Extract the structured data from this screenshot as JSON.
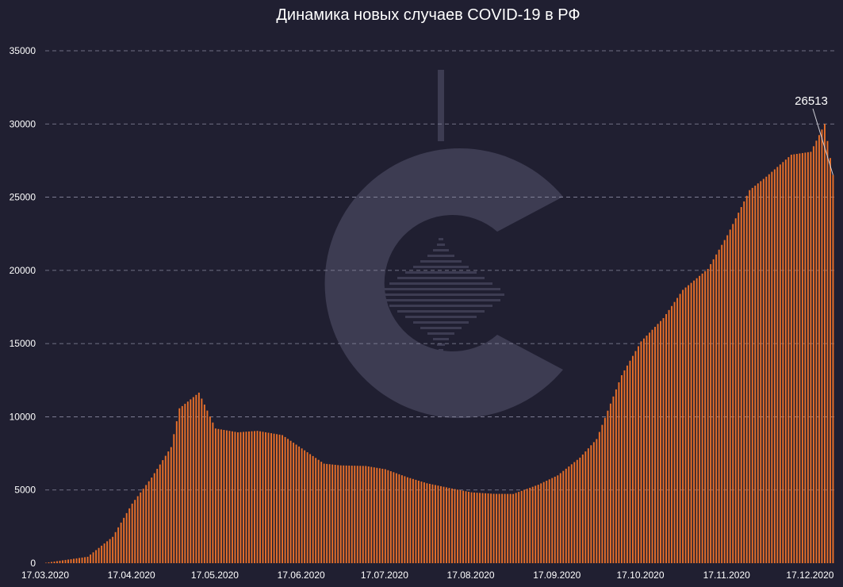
{
  "chart_data": {
    "type": "bar",
    "title": "Динамика новых случаев COVID-19 в РФ",
    "xlabel": "",
    "ylabel": "",
    "ylim": [
      0,
      35000
    ],
    "yticks": [
      0,
      5000,
      10000,
      15000,
      20000,
      25000,
      30000,
      35000
    ],
    "grid": true,
    "x_start": "17.03.2020",
    "x_end": "25.12.2020",
    "xtick_labels": [
      "17.03.2020",
      "17.04.2020",
      "17.05.2020",
      "17.06.2020",
      "17.07.2020",
      "17.08.2020",
      "17.09.2020",
      "17.10.2020",
      "17.11.2020",
      "17.12.2020"
    ],
    "monthly_points": [
      {
        "date": "17.03.2020",
        "value": 30
      },
      {
        "date": "01.04.2020",
        "value": 440
      },
      {
        "date": "10.04.2020",
        "value": 1800
      },
      {
        "date": "17.04.2020",
        "value": 4070
      },
      {
        "date": "24.04.2020",
        "value": 5850
      },
      {
        "date": "01.05.2020",
        "value": 7930
      },
      {
        "date": "04.05.2020",
        "value": 10580
      },
      {
        "date": "11.05.2020",
        "value": 11650
      },
      {
        "date": "17.05.2020",
        "value": 9200
      },
      {
        "date": "25.05.2020",
        "value": 8940
      },
      {
        "date": "01.06.2020",
        "value": 9040
      },
      {
        "date": "10.06.2020",
        "value": 8750
      },
      {
        "date": "17.06.2020",
        "value": 7840
      },
      {
        "date": "25.06.2020",
        "value": 6800
      },
      {
        "date": "01.07.2020",
        "value": 6680
      },
      {
        "date": "10.07.2020",
        "value": 6640
      },
      {
        "date": "17.07.2020",
        "value": 6420
      },
      {
        "date": "25.07.2020",
        "value": 5870
      },
      {
        "date": "01.08.2020",
        "value": 5460
      },
      {
        "date": "10.08.2020",
        "value": 5100
      },
      {
        "date": "17.08.2020",
        "value": 4840
      },
      {
        "date": "25.08.2020",
        "value": 4740
      },
      {
        "date": "01.09.2020",
        "value": 4730
      },
      {
        "date": "10.09.2020",
        "value": 5360
      },
      {
        "date": "17.09.2020",
        "value": 6000
      },
      {
        "date": "25.09.2020",
        "value": 7210
      },
      {
        "date": "01.10.2020",
        "value": 8480
      },
      {
        "date": "10.10.2020",
        "value": 12840
      },
      {
        "date": "17.10.2020",
        "value": 15150
      },
      {
        "date": "25.10.2020",
        "value": 16740
      },
      {
        "date": "01.11.2020",
        "value": 18670
      },
      {
        "date": "10.11.2020",
        "value": 20100
      },
      {
        "date": "17.11.2020",
        "value": 22400
      },
      {
        "date": "25.11.2020",
        "value": 25480
      },
      {
        "date": "01.12.2020",
        "value": 26400
      },
      {
        "date": "10.12.2020",
        "value": 27900
      },
      {
        "date": "17.12.2020",
        "value": 28100
      },
      {
        "date": "22.12.2020",
        "value": 30000
      },
      {
        "date": "25.12.2020",
        "value": 26513
      }
    ],
    "annotation": {
      "date": "25.12.2020",
      "label": "26513",
      "value": 26513
    }
  },
  "colors": {
    "background": "#201f31",
    "bar": "#e8702a",
    "grid": "#8a8aa0",
    "text": "#ffffff",
    "watermark": "#3d3c52"
  },
  "watermark": {
    "icon": "logo-c-icon"
  }
}
